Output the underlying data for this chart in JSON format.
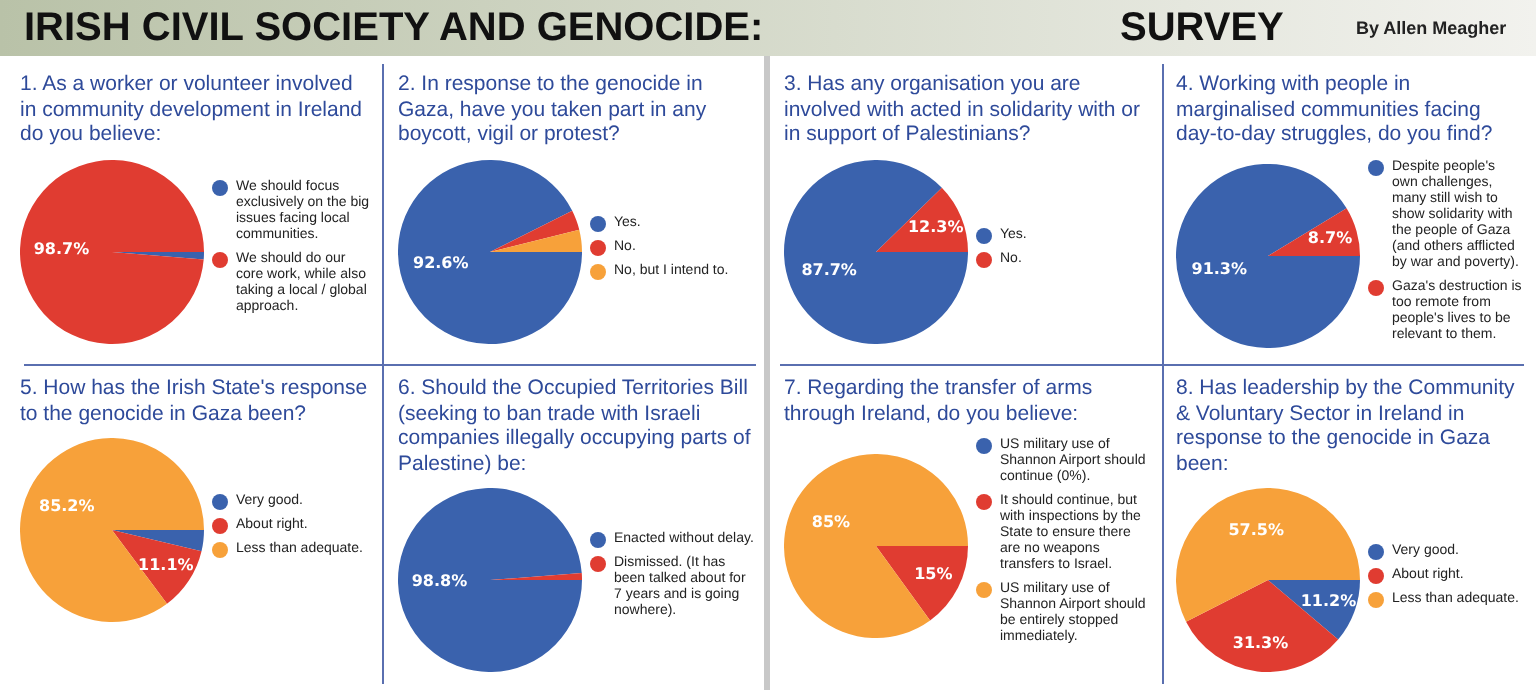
{
  "chart_data": [
    {
      "type": "other",
      "title": "IRISH CIVIL SOCIETY AND GENOCIDE:",
      "subtitle": "SURVEY",
      "annotations": [
        "By Allen Meagher"
      ]
    },
    {
      "type": "pie",
      "title": "1. As a worker or volunteer involved in community development in Ireland do you believe:",
      "categories": [
        "We should focus exclusively on the big issues facing local communities.",
        "We should do our core work, while also taking a local / global approach."
      ],
      "values": [
        1.3,
        98.7
      ],
      "colors": [
        "#3a62ad",
        "#e03c31"
      ],
      "value_labels": [
        null,
        "98.7%"
      ],
      "legend": "right"
    },
    {
      "type": "pie",
      "title": "2. In response to the genocide in Gaza, have you taken part in any boycott, vigil or protest?",
      "categories": [
        "Yes.",
        "No.",
        "No, but I intend to."
      ],
      "values": [
        92.6,
        3.5,
        3.9
      ],
      "colors": [
        "#3a62ad",
        "#e03c31",
        "#f7a13a"
      ],
      "value_labels": [
        "92.6%",
        null,
        null
      ],
      "legend": "right"
    },
    {
      "type": "pie",
      "title": "3. Has any organisation you are involved with acted in solidarity with or in support of Palestinians?",
      "categories": [
        "Yes.",
        "No."
      ],
      "values": [
        87.7,
        12.3
      ],
      "colors": [
        "#3a62ad",
        "#e03c31"
      ],
      "value_labels": [
        "87.7%",
        "12.3%"
      ],
      "legend": "right"
    },
    {
      "type": "pie",
      "title": "4. Working with people in marginalised communities facing day-to-day struggles, do you find?",
      "categories": [
        "Despite people's own challenges, many still wish to show solidarity with the people of Gaza (and others afflicted by war and poverty).",
        "Gaza's destruction is too remote from people's lives to be relevant to them."
      ],
      "values": [
        91.3,
        8.7
      ],
      "colors": [
        "#3a62ad",
        "#e03c31"
      ],
      "value_labels": [
        "91.3%",
        "8.7%"
      ],
      "legend": "right"
    },
    {
      "type": "pie",
      "title": "5. How has the Irish State's response to the genocide in Gaza been?",
      "categories": [
        "Very good.",
        "About right.",
        "Less than adequate."
      ],
      "values": [
        3.7,
        11.1,
        85.2
      ],
      "colors": [
        "#3a62ad",
        "#e03c31",
        "#f7a13a"
      ],
      "value_labels": [
        null,
        "11.1%",
        "85.2%"
      ],
      "legend": "right"
    },
    {
      "type": "pie",
      "title": "6. Should the Occupied Territories Bill (seeking to ban trade with Israeli companies illegally occupying parts of Palestine) be:",
      "categories": [
        "Enacted without delay.",
        "Dismissed. (It has been talked about for 7 years and is going nowhere)."
      ],
      "values": [
        98.8,
        1.2
      ],
      "colors": [
        "#3a62ad",
        "#e03c31"
      ],
      "value_labels": [
        "98.8%",
        null
      ],
      "legend": "right"
    },
    {
      "type": "pie",
      "title": "7. Regarding the transfer of arms through Ireland, do you believe:",
      "categories": [
        "US military use of Shannon Airport should continue (0%).",
        "It should continue, but with inspections by the State to ensure there are no weapons transfers to Israel.",
        "US military use of Shannon Airport should be entirely stopped immediately."
      ],
      "values": [
        0,
        15,
        85
      ],
      "colors": [
        "#3a62ad",
        "#e03c31",
        "#f7a13a"
      ],
      "value_labels": [
        null,
        "15%",
        "85%"
      ],
      "legend": "right"
    },
    {
      "type": "pie",
      "title": "8. Has leadership by the Community & Voluntary Sector in Ireland in response to the genocide in Gaza been:",
      "categories": [
        "Very good.",
        "About right.",
        "Less than adequate."
      ],
      "values": [
        11.2,
        31.3,
        57.5
      ],
      "colors": [
        "#3a62ad",
        "#e03c31",
        "#f7a13a"
      ],
      "value_labels": [
        "11.2%",
        "31.3%",
        "57.5%"
      ],
      "legend": "right"
    }
  ]
}
